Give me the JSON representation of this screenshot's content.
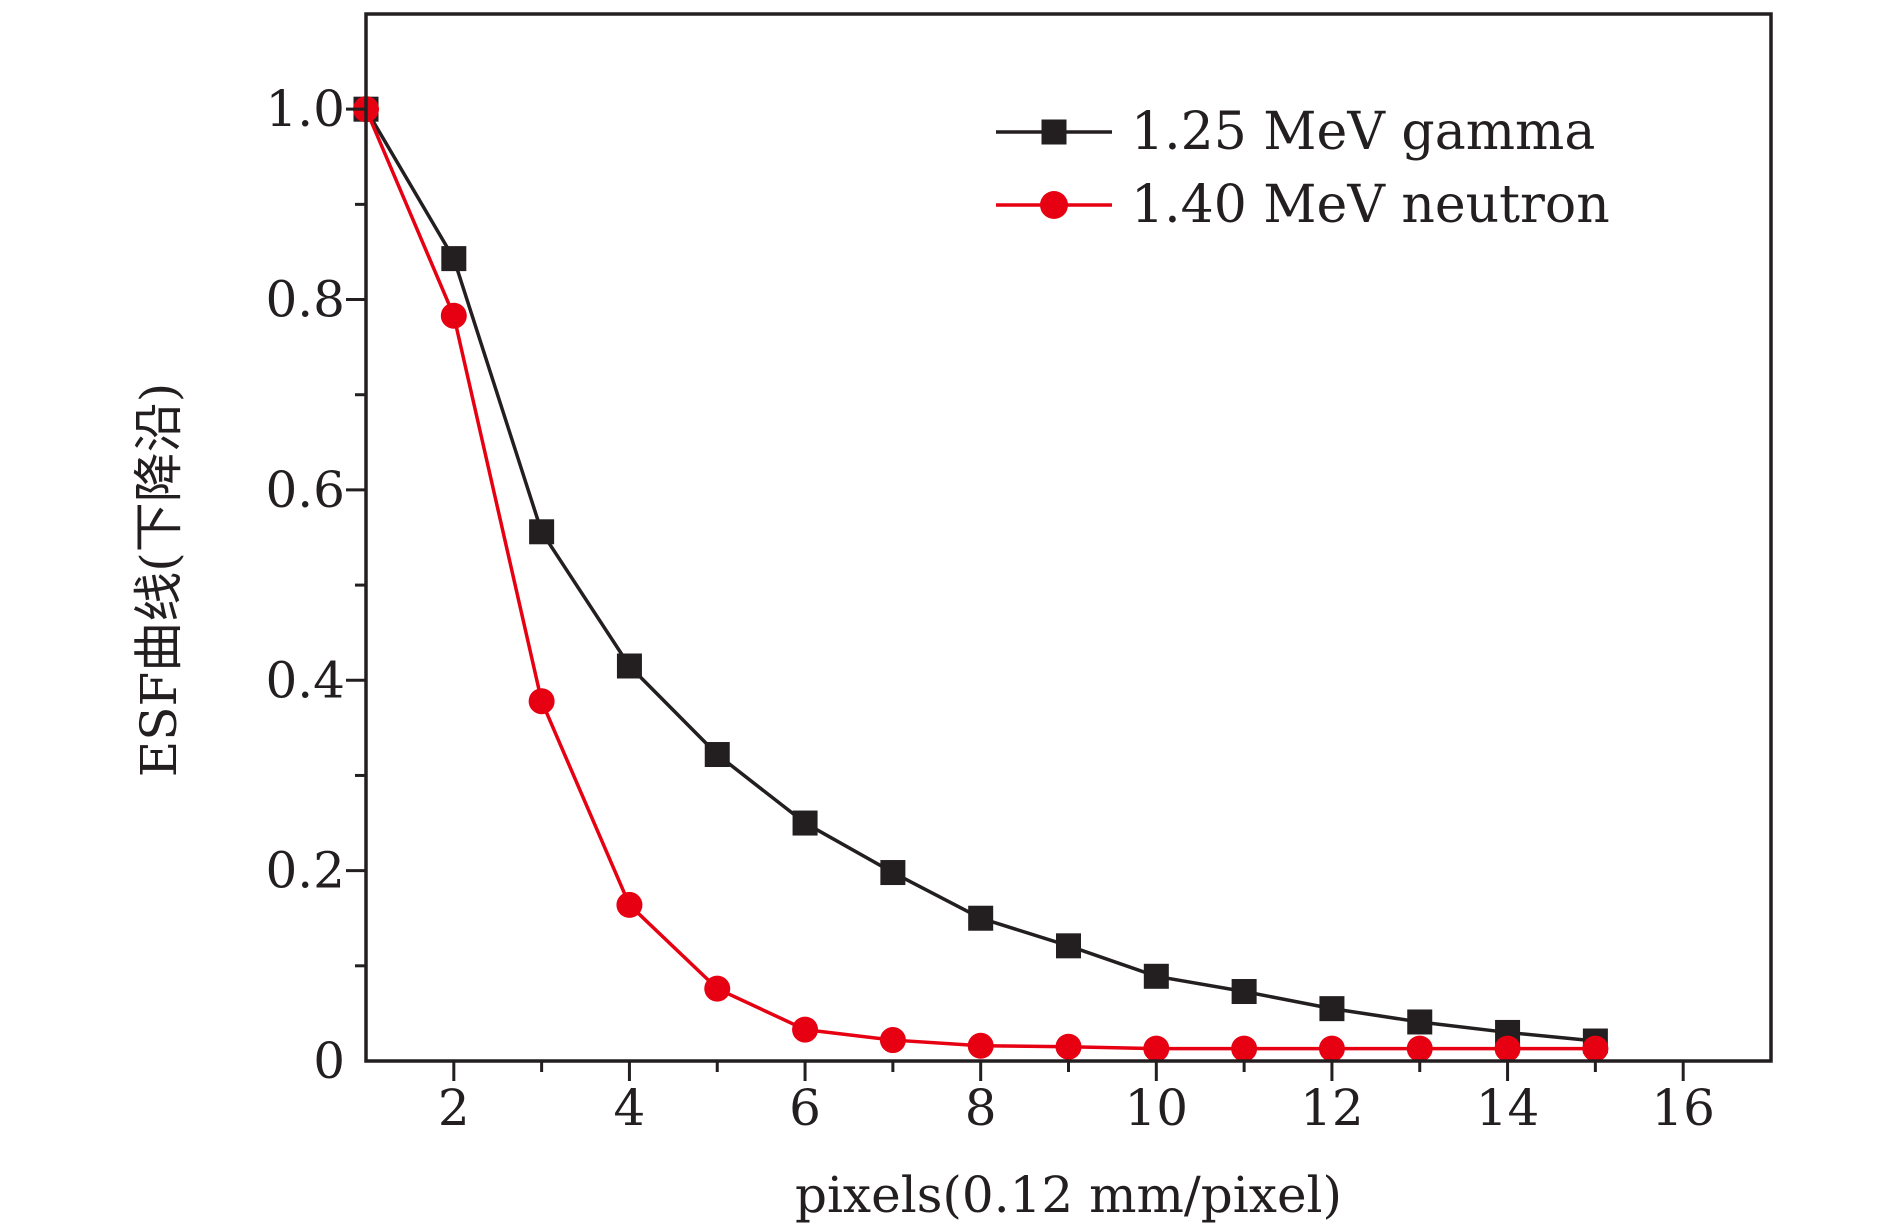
{
  "chart_data": {
    "type": "line",
    "title": "",
    "xlabel": "pixels(0.12 mm/pixel)",
    "ylabel": "ESF曲线(下降沿)",
    "xlim": [
      1,
      17
    ],
    "ylim": [
      0,
      1.1
    ],
    "xticks": [
      2,
      4,
      6,
      8,
      10,
      12,
      14,
      16
    ],
    "xtick_labels": [
      "2",
      "4",
      "6",
      "8",
      "10",
      "12",
      "14",
      "16"
    ],
    "yticks": [
      0,
      0.2,
      0.4,
      0.6,
      0.8,
      1.0
    ],
    "ytick_labels": [
      "0",
      "0.2",
      "0.4",
      "0.6",
      "0.8",
      "1.0"
    ],
    "grid": false,
    "legend_position": "top-right",
    "series": [
      {
        "name": "1.25 MeV gamma",
        "color": "#231f20",
        "marker": "square",
        "x": [
          1,
          2,
          3,
          4,
          5,
          6,
          7,
          8,
          9,
          10,
          11,
          12,
          13,
          14,
          15
        ],
        "values": [
          1.0,
          0.843,
          0.556,
          0.415,
          0.322,
          0.25,
          0.198,
          0.15,
          0.121,
          0.089,
          0.073,
          0.055,
          0.041,
          0.03,
          0.021
        ]
      },
      {
        "name": "1.40 MeV neutron",
        "color": "#e60012",
        "marker": "circle",
        "x": [
          1,
          2,
          3,
          4,
          5,
          6,
          7,
          8,
          9,
          10,
          11,
          12,
          13,
          14,
          15
        ],
        "values": [
          1.0,
          0.783,
          0.378,
          0.164,
          0.076,
          0.033,
          0.022,
          0.016,
          0.015,
          0.013,
          0.013,
          0.013,
          0.013,
          0.013,
          0.013
        ]
      }
    ]
  }
}
